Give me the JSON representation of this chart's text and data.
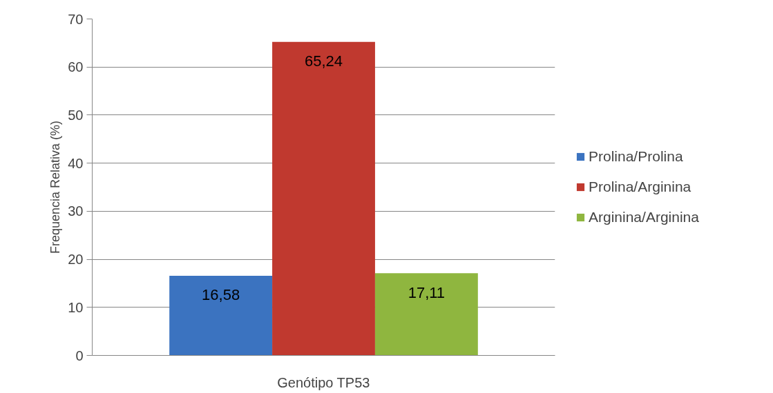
{
  "chart_data": {
    "type": "bar",
    "ylabel": "Frequencia Relativa (%)",
    "categories": [
      "Genótipo TP53"
    ],
    "series": [
      {
        "name": "Prolina/Prolina",
        "color": "#3b73c0",
        "values": [
          16.58
        ],
        "value_labels": [
          "16,58"
        ]
      },
      {
        "name": "Prolina/Arginina",
        "color": "#c0392f",
        "values": [
          65.24
        ],
        "value_labels": [
          "65,24"
        ]
      },
      {
        "name": "Arginina/Arginina",
        "color": "#8fb63f",
        "values": [
          17.11
        ],
        "value_labels": [
          "17,11"
        ]
      }
    ],
    "ylim": [
      0,
      70
    ],
    "yticks": [
      0,
      10,
      20,
      30,
      40,
      50,
      60,
      70
    ],
    "grid": "y",
    "legend": "right"
  }
}
